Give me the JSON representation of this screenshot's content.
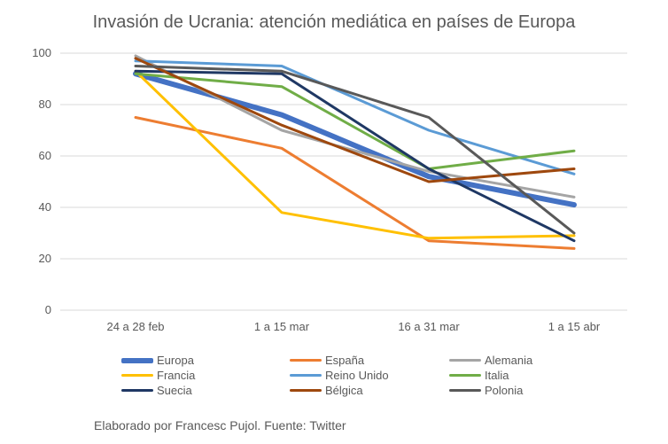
{
  "chart_data": {
    "type": "line",
    "title": "Invasión de Ucrania: atención mediática en países de Europa",
    "xlabel": "",
    "ylabel": "",
    "categories": [
      "24 a 28 feb",
      "1 a 15 mar",
      "16 a 31 mar",
      "1 a 15 abr"
    ],
    "ylim": [
      0,
      100
    ],
    "yticks": [
      0,
      20,
      40,
      60,
      80,
      100
    ],
    "grid": true,
    "legend_position": "bottom",
    "series": [
      {
        "name": "Europa",
        "color": "#4472C4",
        "width": 6,
        "values": [
          92,
          76,
          52,
          41
        ]
      },
      {
        "name": "España",
        "color": "#ED7D31",
        "width": 3,
        "values": [
          75,
          63,
          27,
          24
        ]
      },
      {
        "name": "Alemania",
        "color": "#A5A5A5",
        "width": 3,
        "values": [
          99,
          70,
          54,
          44
        ]
      },
      {
        "name": "Francia",
        "color": "#FFC000",
        "width": 3,
        "values": [
          93,
          38,
          28,
          29
        ]
      },
      {
        "name": "Reino Unido",
        "color": "#5B9BD5",
        "width": 3,
        "values": [
          97,
          95,
          70,
          53
        ]
      },
      {
        "name": "Italia",
        "color": "#70AD47",
        "width": 3,
        "values": [
          92,
          87,
          55,
          62
        ]
      },
      {
        "name": "Suecia",
        "color": "#1F3864",
        "width": 3,
        "values": [
          93,
          92,
          55,
          27
        ]
      },
      {
        "name": "Bélgica",
        "color": "#9E480E",
        "width": 3,
        "values": [
          98,
          72,
          50,
          55
        ]
      },
      {
        "name": "Polonia",
        "color": "#595959",
        "width": 3,
        "values": [
          95,
          93,
          75,
          30
        ]
      }
    ]
  },
  "footer": "Elaborado por Francesc Pujol. Fuente: Twitter"
}
